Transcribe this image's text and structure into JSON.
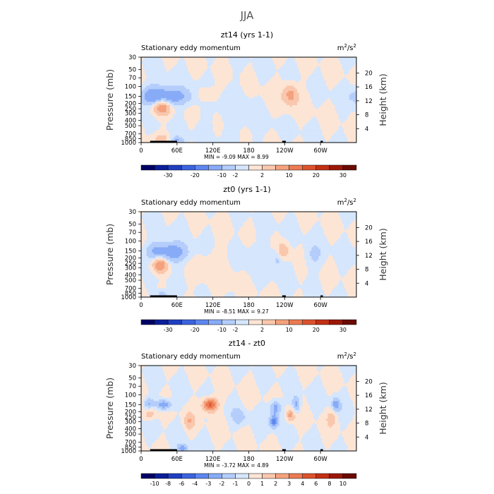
{
  "figure": {
    "title": "JJA",
    "colors": {
      "frame": "#000000",
      "text": "#000000",
      "terrain": "#000000",
      "title": "#555555"
    }
  },
  "chart_data": [
    {
      "type": "heatmap",
      "title": "zt14 (yrs 1-1)",
      "subtitle_left": "Stationary eddy momentum",
      "units_main": "m",
      "units_sup1": "2",
      "units_mid": "/s",
      "units_sup2": "2",
      "ylabel": "Pressure (mb)",
      "ylabel_right": "Height (km)",
      "x_ticks": [
        "0",
        "60E",
        "120E",
        "180",
        "120W",
        "60W"
      ],
      "x_tick_lons": [
        0,
        60,
        120,
        180,
        240,
        300
      ],
      "xlim": [
        0,
        360
      ],
      "y_ticks": [
        "30",
        "50",
        "70",
        "100",
        "150",
        "200",
        "250",
        "300",
        "400",
        "500",
        "700",
        "850",
        "1000"
      ],
      "y_tick_values": [
        30,
        50,
        70,
        100,
        150,
        200,
        250,
        300,
        400,
        500,
        700,
        850,
        1000
      ],
      "ylim": [
        1000,
        30
      ],
      "height_ticks": [
        "20",
        "16",
        "12",
        "8",
        "4"
      ],
      "height_tick_values": [
        20,
        16,
        12,
        8,
        4
      ],
      "stats": "MIN =   -9.09   MAX =    8.99",
      "colorbar_labels": [
        "-30",
        "-20",
        "-10",
        "-2",
        "2",
        "10",
        "20",
        "30"
      ],
      "colorbar_levels": [
        "-35",
        "-30",
        "-25",
        "-20",
        "-15",
        "-10",
        "-5",
        "-2",
        "0",
        "2",
        "5",
        "10",
        "15",
        "20",
        "25",
        "30",
        "35"
      ],
      "features": [
        {
          "lon": 40,
          "p": 150,
          "dlon": 28,
          "dlogp": 0.11,
          "amp": -9
        },
        {
          "lon": 34,
          "p": 230,
          "dlon": 10,
          "dlogp": 0.1,
          "amp": 9
        },
        {
          "lon": 18,
          "p": 140,
          "dlon": 10,
          "dlogp": 0.12,
          "amp": -3
        },
        {
          "lon": 110,
          "p": 140,
          "dlon": 12,
          "dlogp": 0.1,
          "amp": 2.5
        },
        {
          "lon": 250,
          "p": 140,
          "dlon": 8,
          "dlogp": 0.12,
          "amp": 6
        },
        {
          "lon": 60,
          "p": 920,
          "dlon": 8,
          "dlogp": 0.05,
          "amp": -5
        },
        {
          "lon": 35,
          "p": 850,
          "dlon": 10,
          "dlogp": 0.05,
          "amp": 3
        },
        {
          "lon": 225,
          "p": 200,
          "dlon": 30,
          "dlogp": 0.2,
          "amp": 1
        },
        {
          "lon": 170,
          "p": 300,
          "dlon": 40,
          "dlogp": 0.3,
          "amp": -1
        }
      ]
    },
    {
      "type": "heatmap",
      "title": "zt0 (yrs 1-1)",
      "subtitle_left": "Stationary eddy momentum",
      "units_main": "m",
      "units_sup1": "2",
      "units_mid": "/s",
      "units_sup2": "2",
      "ylabel": "Pressure (mb)",
      "ylabel_right": "Height (km)",
      "x_ticks": [
        "0",
        "60E",
        "120E",
        "180",
        "120W",
        "60W"
      ],
      "x_tick_lons": [
        0,
        60,
        120,
        180,
        240,
        300
      ],
      "xlim": [
        0,
        360
      ],
      "y_ticks": [
        "30",
        "50",
        "70",
        "100",
        "150",
        "200",
        "250",
        "300",
        "400",
        "500",
        "700",
        "850",
        "1000"
      ],
      "y_tick_values": [
        30,
        50,
        70,
        100,
        150,
        200,
        250,
        300,
        400,
        500,
        700,
        850,
        1000
      ],
      "ylim": [
        1000,
        30
      ],
      "height_ticks": [
        "20",
        "16",
        "12",
        "8",
        "4"
      ],
      "height_tick_values": [
        20,
        16,
        12,
        8,
        4
      ],
      "stats": "MIN =   -8.51   MAX =    9.27",
      "colorbar_labels": [
        "-30",
        "-20",
        "-10",
        "-2",
        "2",
        "10",
        "20",
        "30"
      ],
      "colorbar_levels": [
        "-35",
        "-30",
        "-25",
        "-20",
        "-15",
        "-10",
        "-5",
        "-2",
        "0",
        "2",
        "5",
        "10",
        "15",
        "20",
        "25",
        "30",
        "35"
      ],
      "features": [
        {
          "lon": 48,
          "p": 160,
          "dlon": 20,
          "dlogp": 0.12,
          "amp": -8.5
        },
        {
          "lon": 32,
          "p": 260,
          "dlon": 9,
          "dlogp": 0.1,
          "amp": 9.2
        },
        {
          "lon": 20,
          "p": 150,
          "dlon": 9,
          "dlogp": 0.1,
          "amp": -2.5
        },
        {
          "lon": 237,
          "p": 150,
          "dlon": 7,
          "dlogp": 0.1,
          "amp": 5
        },
        {
          "lon": 228,
          "p": 200,
          "dlon": 6,
          "dlogp": 0.12,
          "amp": -3
        },
        {
          "lon": 290,
          "p": 180,
          "dlon": 10,
          "dlogp": 0.15,
          "amp": -2.5
        },
        {
          "lon": 35,
          "p": 880,
          "dlon": 6,
          "dlogp": 0.05,
          "amp": -4
        },
        {
          "lon": 130,
          "p": 300,
          "dlon": 30,
          "dlogp": 0.3,
          "amp": 1
        },
        {
          "lon": 190,
          "p": 200,
          "dlon": 30,
          "dlogp": 0.25,
          "amp": -1
        }
      ]
    },
    {
      "type": "heatmap",
      "title": "zt14 - zt0",
      "subtitle_left": "Stationary eddy momentum",
      "units_main": "m",
      "units_sup1": "2",
      "units_mid": "/s",
      "units_sup2": "2",
      "ylabel": "Pressure (mb)",
      "ylabel_right": "Height (km)",
      "x_ticks": [
        "0",
        "60E",
        "120E",
        "180",
        "120W",
        "60W"
      ],
      "x_tick_lons": [
        0,
        60,
        120,
        180,
        240,
        300
      ],
      "xlim": [
        0,
        360
      ],
      "y_ticks": [
        "30",
        "50",
        "70",
        "100",
        "150",
        "200",
        "250",
        "300",
        "400",
        "500",
        "700",
        "850",
        "1000"
      ],
      "y_tick_values": [
        30,
        50,
        70,
        100,
        150,
        200,
        250,
        300,
        400,
        500,
        700,
        850,
        1000
      ],
      "ylim": [
        1000,
        30
      ],
      "height_ticks": [
        "20",
        "16",
        "12",
        "8",
        "4"
      ],
      "height_tick_values": [
        20,
        16,
        12,
        8,
        4
      ],
      "stats": "MIN =   -3.72   MAX =    4.89",
      "colorbar_labels": [
        "-10",
        "-8",
        "-6",
        "-4",
        "-3",
        "-2",
        "-1",
        "0",
        "1",
        "2",
        "3",
        "4",
        "6",
        "8",
        "10"
      ],
      "colorbar_levels": [
        "-12",
        "-10",
        "-8",
        "-6",
        "-4",
        "-3",
        "-2",
        "-1",
        "0",
        "1",
        "2",
        "3",
        "4",
        "6",
        "8",
        "10",
        "12"
      ],
      "features": [
        {
          "lon": 115,
          "p": 150,
          "dlon": 9,
          "dlogp": 0.09,
          "amp": 4.9
        },
        {
          "lon": 38,
          "p": 150,
          "dlon": 10,
          "dlogp": 0.07,
          "amp": -3.5
        },
        {
          "lon": 12,
          "p": 150,
          "dlon": 6,
          "dlogp": 0.09,
          "amp": -2.5
        },
        {
          "lon": 14,
          "p": 210,
          "dlon": 7,
          "dlogp": 0.09,
          "amp": 2.5
        },
        {
          "lon": 225,
          "p": 170,
          "dlon": 7,
          "dlogp": 0.1,
          "amp": -3.2
        },
        {
          "lon": 222,
          "p": 300,
          "dlon": 5,
          "dlogp": 0.08,
          "amp": -3.7
        },
        {
          "lon": 260,
          "p": 150,
          "dlon": 5,
          "dlogp": 0.1,
          "amp": -2.5
        },
        {
          "lon": 250,
          "p": 230,
          "dlon": 5,
          "dlogp": 0.08,
          "amp": 2.5
        },
        {
          "lon": 325,
          "p": 150,
          "dlon": 5,
          "dlogp": 0.1,
          "amp": -2.5
        },
        {
          "lon": 80,
          "p": 300,
          "dlon": 6,
          "dlogp": 0.1,
          "amp": 1.5
        },
        {
          "lon": 165,
          "p": 250,
          "dlon": 8,
          "dlogp": 0.1,
          "amp": -1.5
        },
        {
          "lon": 70,
          "p": 900,
          "dlon": 6,
          "dlogp": 0.05,
          "amp": -2.5
        },
        {
          "lon": 320,
          "p": 250,
          "dlon": 6,
          "dlogp": 0.1,
          "amp": 1.5
        }
      ]
    }
  ]
}
